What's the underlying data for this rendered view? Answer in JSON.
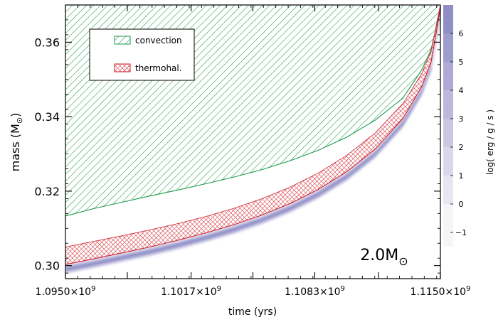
{
  "chart_data": {
    "type": "area",
    "x": [
      1095000000.0,
      1096500000.0,
      1098000000.0,
      1099500000.0,
      1101000000.0,
      1102500000.0,
      1104000000.0,
      1105500000.0,
      1107000000.0,
      1108500000.0,
      1110000000.0,
      1111500000.0,
      1113000000.0,
      1114000000.0,
      1114500000.0,
      1115000000.0
    ],
    "series": [
      {
        "name": "convection",
        "pattern": "diagonal-hatch",
        "color": "#1a9a4a",
        "lower": [
          0.3133,
          0.3153,
          0.317,
          0.3187,
          0.3203,
          0.322,
          0.3238,
          0.3258,
          0.3282,
          0.331,
          0.3345,
          0.339,
          0.345,
          0.3525,
          0.358,
          0.369
        ],
        "upper": [
          0.37,
          0.37,
          0.37,
          0.37,
          0.37,
          0.37,
          0.37,
          0.37,
          0.37,
          0.37,
          0.37,
          0.37,
          0.37,
          0.37,
          0.37,
          0.37
        ]
      },
      {
        "name": "thermohal.",
        "pattern": "cross-hatch",
        "color": "#d0202a",
        "lower": [
          0.3003,
          0.3018,
          0.3034,
          0.305,
          0.3068,
          0.3088,
          0.311,
          0.3136,
          0.3167,
          0.3205,
          0.3252,
          0.3312,
          0.3395,
          0.348,
          0.3545,
          0.369
        ],
        "upper": [
          0.305,
          0.3065,
          0.308,
          0.3096,
          0.3113,
          0.3132,
          0.3154,
          0.318,
          0.3211,
          0.3249,
          0.3296,
          0.3355,
          0.3435,
          0.3515,
          0.3575,
          0.37
        ]
      }
    ],
    "energy_band": {
      "center": [
        0.299,
        0.3005,
        0.3021,
        0.3037,
        0.3055,
        0.3075,
        0.3097,
        0.3123,
        0.3154,
        0.3192,
        0.3239,
        0.3299,
        0.3382,
        0.3467,
        0.3532,
        0.368
      ],
      "peak_value": 6.5
    },
    "xlabel": "time (yrs)",
    "ylabel_main": "mass (M",
    "ylabel_sub": "⊙",
    "ylabel_close": ")",
    "xlim": [
      1095000000.0,
      1115000000.0
    ],
    "ylim": [
      0.2965,
      0.37
    ],
    "xticks": [
      1095000000.0,
      1098300000.0,
      1101700000.0,
      1105000000.0,
      1108300000.0,
      1111700000.0,
      1115000000.0
    ],
    "xtick_labels": [
      "1.0950×10",
      "",
      "1.1017×10",
      "",
      "1.1083×10",
      "",
      "1.1150×10"
    ],
    "xtick_exp": "9",
    "yticks": [
      0.3,
      0.32,
      0.34,
      0.36
    ],
    "ytick_labels": [
      "0.30",
      "0.32",
      "0.34",
      "0.36"
    ],
    "annotation_main": "2.0M",
    "annotation_sub": "⊙",
    "colorbar": {
      "label": "log( erg / g / s )",
      "range": [
        -1.5,
        7.0
      ],
      "ticks": [
        -1,
        0,
        1,
        2,
        3,
        4,
        5,
        6
      ],
      "tick_labels": [
        "−1",
        "0",
        "1",
        "2",
        "3",
        "4",
        "5",
        "6"
      ],
      "color": "#7a78bb"
    },
    "legend_position": "top-left",
    "grid": false
  }
}
